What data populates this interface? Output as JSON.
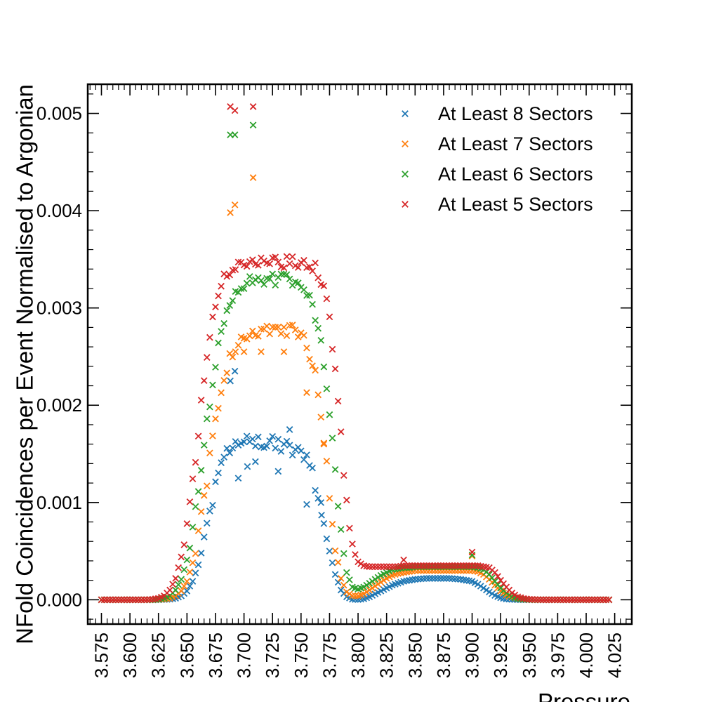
{
  "chart_data": {
    "type": "scatter",
    "title": "",
    "xlabel": "Pressure",
    "ylabel": "NFold Coincidences per Event Normalised to Argonian",
    "xlim": [
      3.563,
      4.04
    ],
    "ylim": [
      -0.00025,
      0.0053
    ],
    "xticks": [
      "3.575",
      "3.600",
      "3.625",
      "3.650",
      "3.675",
      "3.700",
      "3.725",
      "3.750",
      "3.775",
      "3.800",
      "3.825",
      "3.850",
      "3.875",
      "3.900",
      "3.925",
      "3.950",
      "3.975",
      "4.000",
      "4.025"
    ],
    "yticks": [
      "0.000",
      "0.001",
      "0.002",
      "0.003",
      "0.004",
      "0.005"
    ],
    "grid": false,
    "legend_position": "top-right",
    "marker": "x",
    "x": [
      3.575,
      3.58,
      3.585,
      3.59,
      3.595,
      3.6,
      3.605,
      3.61,
      3.615,
      3.62,
      3.625,
      3.63,
      3.635,
      3.64,
      3.645,
      3.65,
      3.655,
      3.66,
      3.665,
      3.67,
      3.675,
      3.68,
      3.685,
      3.69,
      3.695,
      3.7,
      3.705,
      3.71,
      3.715,
      3.72,
      3.725,
      3.73,
      3.735,
      3.74,
      3.745,
      3.75,
      3.755,
      3.76,
      3.765,
      3.77,
      3.775,
      3.78,
      3.785,
      3.79,
      3.795,
      3.8,
      3.805,
      3.81,
      3.815,
      3.82,
      3.825,
      3.83,
      3.835,
      3.84,
      3.845,
      3.85,
      3.855,
      3.86,
      3.865,
      3.87,
      3.875,
      3.88,
      3.885,
      3.89,
      3.895,
      3.9,
      3.905,
      3.91,
      3.915,
      3.92,
      3.925,
      3.93,
      3.935,
      3.94,
      3.945,
      3.95,
      3.955,
      3.96,
      3.965,
      3.97,
      3.975,
      3.98,
      3.985,
      3.99,
      3.995,
      4.0,
      4.005,
      4.01,
      4.015,
      4.02
    ],
    "series": [
      {
        "name": "At Least 8 Sectors",
        "color": "#1f77b4",
        "values": [
          0,
          0,
          0,
          0,
          0,
          0,
          0,
          0,
          0,
          0,
          0,
          2e-06,
          6e-06,
          1.5e-05,
          4e-05,
          9e-05,
          0.00019,
          0.00036,
          0.0006,
          0.00089,
          0.00116,
          0.00137,
          0.00151,
          0.0016,
          0.00165,
          0.00167,
          0.00166,
          0.00165,
          0.00163,
          0.00162,
          0.00161,
          0.0016,
          0.00158,
          0.00156,
          0.00153,
          0.00149,
          0.00142,
          0.00129,
          0.00108,
          0.0008,
          0.0005,
          0.00026,
          0.0001,
          3e-05,
          5e-06,
          2e-06,
          1e-05,
          3e-05,
          6e-05,
          9e-05,
          0.00012,
          0.00015,
          0.00017,
          0.00019,
          0.0002,
          0.00021,
          0.000215,
          0.00022,
          0.00022,
          0.00022,
          0.00022,
          0.00022,
          0.000215,
          0.00021,
          0.0002,
          0.00019,
          0.00016,
          0.00012,
          8e-05,
          4.5e-05,
          2e-05,
          8e-06,
          3e-06,
          1e-06,
          0,
          0,
          0,
          0,
          0,
          0,
          0,
          0,
          0,
          0,
          0,
          0,
          0,
          0,
          0,
          0
        ],
        "outliers": [
          [
            3.692,
            0.00235
          ],
          [
            3.688,
            0.00225
          ],
          [
            3.695,
            0.00125
          ],
          [
            3.703,
            0.00137
          ],
          [
            3.71,
            0.00142
          ],
          [
            3.73,
            0.00132
          ],
          [
            3.755,
            0.00098
          ],
          [
            3.768,
            0.00087
          ],
          [
            3.74,
            0.00175
          ]
        ]
      },
      {
        "name": "At Least 7 Sectors",
        "color": "#ff7f0e",
        "values": [
          0,
          0,
          0,
          0,
          0,
          0,
          0,
          0,
          0,
          0,
          2e-06,
          6e-06,
          1.5e-05,
          4e-05,
          9e-05,
          0.00019,
          0.00038,
          0.00066,
          0.00103,
          0.00145,
          0.00185,
          0.00215,
          0.00238,
          0.00255,
          0.00266,
          0.00272,
          0.00275,
          0.00277,
          0.00278,
          0.00278,
          0.00278,
          0.00278,
          0.00278,
          0.00277,
          0.00275,
          0.00271,
          0.00263,
          0.00245,
          0.00214,
          0.00167,
          0.00108,
          0.00055,
          0.00022,
          8e-05,
          4e-05,
          4e-05,
          6e-05,
          0.0001,
          0.00014,
          0.00018,
          0.00022,
          0.00025,
          0.00027,
          0.00028,
          0.00029,
          0.0003,
          0.0003,
          0.0003,
          0.0003,
          0.0003,
          0.0003,
          0.0003,
          0.0003,
          0.0003,
          0.0003,
          0.0003,
          0.00029,
          0.00026,
          0.00021,
          0.00015,
          9e-05,
          5e-05,
          2.5e-05,
          1e-05,
          4e-06,
          1e-06,
          0,
          0,
          0,
          0,
          0,
          0,
          0,
          0,
          0,
          0,
          0,
          0,
          0,
          0
        ],
        "outliers": [
          [
            3.688,
            0.00398
          ],
          [
            3.692,
            0.00406
          ],
          [
            3.708,
            0.00434
          ],
          [
            3.7,
            0.00255
          ],
          [
            3.715,
            0.00255
          ],
          [
            3.735,
            0.00255
          ],
          [
            3.755,
            0.00213
          ],
          [
            3.77,
            0.0016
          ],
          [
            3.9,
            0.00045
          ]
        ]
      },
      {
        "name": "At Least 6 Sectors",
        "color": "#2ca02c",
        "values": [
          0,
          0,
          0,
          0,
          0,
          0,
          0,
          0,
          0,
          0,
          5e-06,
          1.5e-05,
          4e-05,
          0.0001,
          0.00021,
          0.00041,
          0.00071,
          0.00111,
          0.00158,
          0.00205,
          0.00245,
          0.00277,
          0.00299,
          0.00312,
          0.0032,
          0.00324,
          0.00326,
          0.00327,
          0.00327,
          0.00327,
          0.00328,
          0.00328,
          0.00328,
          0.00328,
          0.00327,
          0.00324,
          0.00318,
          0.00305,
          0.00282,
          0.00246,
          0.00193,
          0.00128,
          0.00067,
          0.00028,
          0.00013,
          0.00011,
          0.00013,
          0.00017,
          0.00021,
          0.00025,
          0.00028,
          0.00031,
          0.00032,
          0.00033,
          0.00033,
          0.00034,
          0.00034,
          0.00034,
          0.00034,
          0.00034,
          0.00034,
          0.00034,
          0.00034,
          0.00034,
          0.00034,
          0.00034,
          0.00033,
          0.00031,
          0.00026,
          0.00019,
          0.00012,
          7e-05,
          3e-05,
          1.2e-05,
          5e-06,
          2e-06,
          0,
          0,
          0,
          0,
          0,
          0,
          0,
          0,
          0,
          0,
          0,
          0,
          0,
          0
        ],
        "outliers": [
          [
            3.688,
            0.00478
          ],
          [
            3.692,
            0.00478
          ],
          [
            3.708,
            0.00488
          ],
          [
            3.9,
            0.00046
          ]
        ]
      },
      {
        "name": "At Least 5 Sectors",
        "color": "#d62728",
        "values": [
          0,
          0,
          0,
          0,
          0,
          0,
          0,
          0,
          0,
          5e-06,
          1.5e-05,
          4e-05,
          0.0001,
          0.00022,
          0.00044,
          0.00077,
          0.00121,
          0.00173,
          0.00227,
          0.00272,
          0.00304,
          0.00323,
          0.00333,
          0.00339,
          0.00342,
          0.00343,
          0.00344,
          0.00344,
          0.00345,
          0.00345,
          0.00346,
          0.00347,
          0.00348,
          0.00348,
          0.00348,
          0.00347,
          0.00346,
          0.00343,
          0.00336,
          0.00321,
          0.0029,
          0.00237,
          0.00167,
          0.00098,
          0.00054,
          0.00039,
          0.00035,
          0.00034,
          0.00034,
          0.00034,
          0.00034,
          0.00034,
          0.00034,
          0.00035,
          0.00035,
          0.00035,
          0.00035,
          0.00035,
          0.00035,
          0.00035,
          0.00035,
          0.00035,
          0.00035,
          0.00035,
          0.00035,
          0.00035,
          0.00035,
          0.00034,
          0.00033,
          0.00028,
          0.0002,
          0.00013,
          7e-05,
          3e-05,
          1.3e-05,
          5e-06,
          2e-06,
          0,
          0,
          0,
          0,
          0,
          0,
          0,
          0,
          0,
          0,
          0,
          0,
          0
        ],
        "outliers": [
          [
            3.688,
            0.00507
          ],
          [
            3.692,
            0.00503
          ],
          [
            3.708,
            0.00507
          ],
          [
            3.84,
            0.00041
          ],
          [
            3.9,
            0.00049
          ]
        ]
      }
    ]
  }
}
